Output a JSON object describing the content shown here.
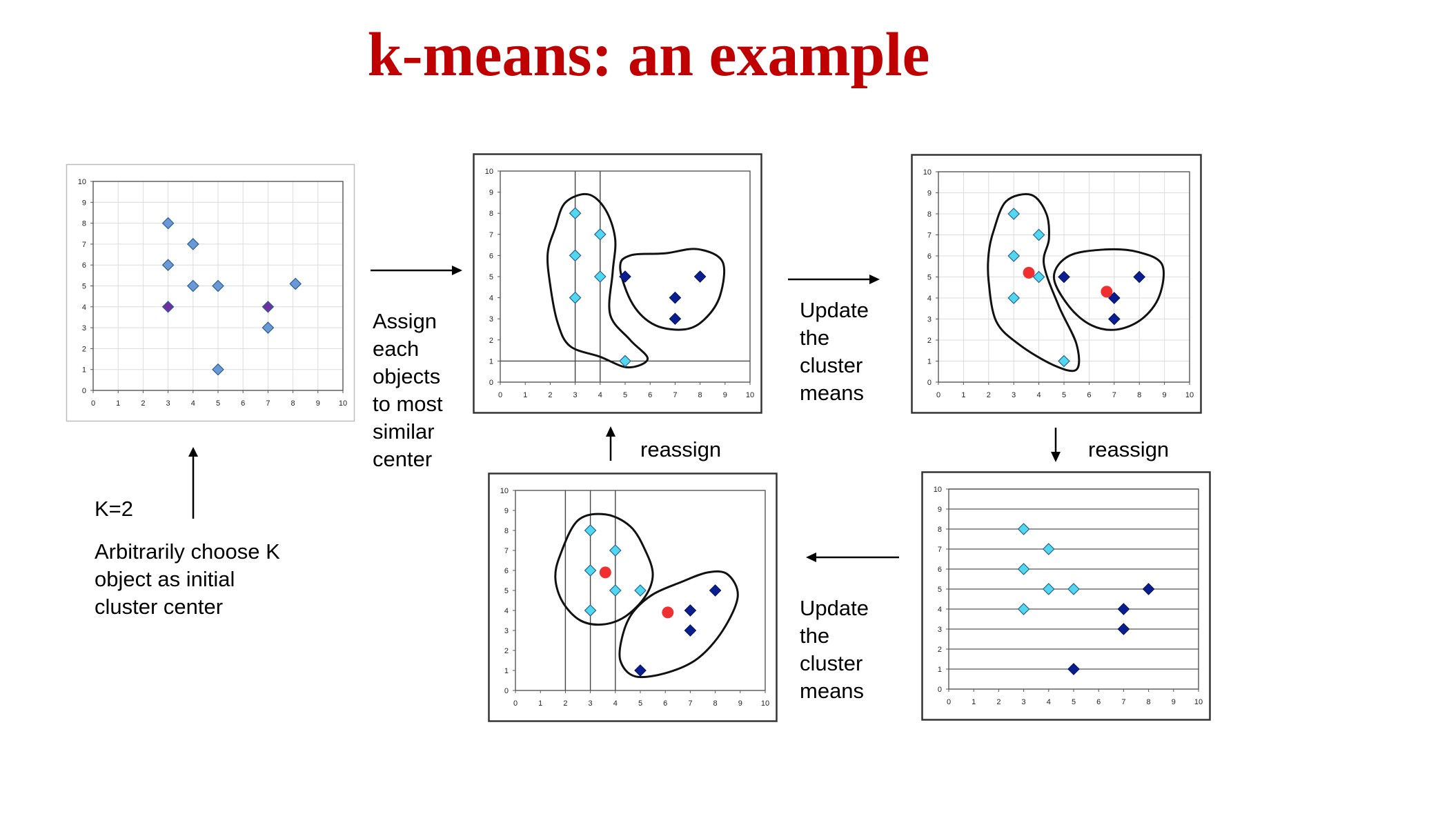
{
  "title": "k-means: an example",
  "labels": {
    "k": "K=2",
    "choose": "Arbitrarily choose K\nobject as initial\ncluster center",
    "assign": "Assign\neach\nobjects\nto most\nsimilar\ncenter",
    "update_top": "Update\nthe\ncluster\nmeans",
    "update_bottom": "Update\nthe\ncluster\nmeans",
    "reassign_left": "reassign",
    "reassign_right": "reassign"
  },
  "colors": {
    "initial": "#6b98d6",
    "center": "#7030a0",
    "cluster1": "#4fd8f0",
    "cluster2": "#0a1f8f",
    "mean": "#f03030",
    "text": "#000000",
    "title": "#c00000"
  },
  "chart_data": [
    {
      "id": "initial",
      "type": "scatter",
      "xlim": [
        0,
        10
      ],
      "ylim": [
        0,
        10
      ],
      "x_ticks": [
        "0",
        "1",
        "2",
        "3",
        "4",
        "5",
        "6",
        "7",
        "8",
        "9",
        "10"
      ],
      "y_ticks": [
        "0",
        "1",
        "2",
        "3",
        "4",
        "5",
        "6",
        "7",
        "8",
        "9",
        "10"
      ],
      "grid": "both",
      "series": [
        {
          "role": "initial",
          "points": [
            [
              3,
              8
            ],
            [
              4,
              7
            ],
            [
              3,
              6
            ],
            [
              4,
              5
            ],
            [
              5,
              5
            ],
            [
              8.1,
              5.1
            ],
            [
              7,
              3
            ],
            [
              5,
              1
            ]
          ]
        },
        {
          "role": "center",
          "points": [
            [
              3,
              4
            ],
            [
              7,
              4
            ]
          ]
        }
      ]
    },
    {
      "id": "assign",
      "type": "scatter",
      "xlim": [
        0,
        10
      ],
      "ylim": [
        0,
        10
      ],
      "x_ticks": [
        "0",
        "1",
        "2",
        "3",
        "4",
        "5",
        "6",
        "7",
        "8",
        "9",
        "10"
      ],
      "y_ticks": [
        "0",
        "1",
        "2",
        "3",
        "4",
        "5",
        "6",
        "7",
        "8",
        "9",
        "10"
      ],
      "vlines": [
        3,
        4
      ],
      "hlines": [
        1
      ],
      "series": [
        {
          "role": "cluster1",
          "points": [
            [
              3,
              8
            ],
            [
              4,
              7
            ],
            [
              3,
              6
            ],
            [
              4,
              5
            ],
            [
              3,
              4
            ],
            [
              5,
              1
            ]
          ]
        },
        {
          "role": "cluster2",
          "points": [
            [
              5,
              5
            ],
            [
              8,
              5
            ],
            [
              7,
              4
            ],
            [
              7,
              3
            ]
          ]
        }
      ]
    },
    {
      "id": "update1",
      "type": "scatter",
      "xlim": [
        0,
        10
      ],
      "ylim": [
        0,
        10
      ],
      "x_ticks": [
        "0",
        "1",
        "2",
        "3",
        "4",
        "5",
        "6",
        "7",
        "8",
        "9",
        "10"
      ],
      "y_ticks": [
        "0",
        "1",
        "2",
        "3",
        "4",
        "5",
        "6",
        "7",
        "8",
        "9",
        "10"
      ],
      "grid": "both",
      "series": [
        {
          "role": "cluster1",
          "points": [
            [
              3,
              8
            ],
            [
              4,
              7
            ],
            [
              3,
              6
            ],
            [
              4,
              5
            ],
            [
              3,
              4
            ],
            [
              5,
              1
            ]
          ]
        },
        {
          "role": "cluster2",
          "points": [
            [
              5,
              5
            ],
            [
              8,
              5
            ],
            [
              7,
              4
            ],
            [
              7,
              3
            ]
          ]
        },
        {
          "role": "mean",
          "points": [
            [
              3.6,
              5.2
            ],
            [
              6.7,
              4.3
            ]
          ]
        }
      ]
    },
    {
      "id": "reassign_right",
      "type": "scatter",
      "xlim": [
        0,
        10
      ],
      "ylim": [
        0,
        10
      ],
      "x_ticks": [
        "0",
        "1",
        "2",
        "3",
        "4",
        "5",
        "6",
        "7",
        "8",
        "9",
        "10"
      ],
      "y_ticks": [
        "0",
        "1",
        "2",
        "3",
        "4",
        "5",
        "6",
        "7",
        "8",
        "9",
        "10"
      ],
      "grid": "horizontal",
      "series": [
        {
          "role": "cluster1",
          "points": [
            [
              3,
              8
            ],
            [
              4,
              7
            ],
            [
              3,
              6
            ],
            [
              4,
              5
            ],
            [
              5,
              5
            ],
            [
              3,
              4
            ]
          ]
        },
        {
          "role": "cluster2",
          "points": [
            [
              8,
              5
            ],
            [
              7,
              4
            ],
            [
              7,
              3
            ],
            [
              5,
              1
            ]
          ]
        }
      ]
    },
    {
      "id": "update2",
      "type": "scatter",
      "xlim": [
        0,
        10
      ],
      "ylim": [
        0,
        10
      ],
      "x_ticks": [
        "0",
        "1",
        "2",
        "3",
        "4",
        "5",
        "6",
        "7",
        "8",
        "9",
        "10"
      ],
      "y_ticks": [
        "0",
        "1",
        "2",
        "3",
        "4",
        "5",
        "6",
        "7",
        "8",
        "9",
        "10"
      ],
      "vlines": [
        2,
        3,
        4
      ],
      "series": [
        {
          "role": "cluster1",
          "points": [
            [
              3,
              8
            ],
            [
              4,
              7
            ],
            [
              3,
              6
            ],
            [
              4,
              5
            ],
            [
              5,
              5
            ],
            [
              3,
              4
            ]
          ]
        },
        {
          "role": "cluster2",
          "points": [
            [
              8,
              5
            ],
            [
              7,
              4
            ],
            [
              7,
              3
            ],
            [
              5,
              1
            ]
          ]
        },
        {
          "role": "mean",
          "points": [
            [
              3.6,
              5.9
            ],
            [
              6.1,
              3.9
            ]
          ]
        }
      ]
    }
  ]
}
